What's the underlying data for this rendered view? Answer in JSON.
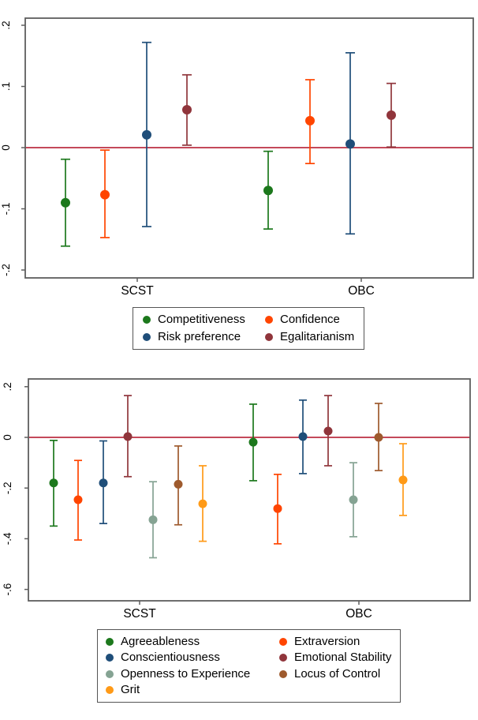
{
  "figure": {
    "background": "#ffffff",
    "frame_color": "#5e5e5e",
    "zero_line_color": "#c4495a",
    "axis_text_color": "#000000"
  },
  "chart_data": [
    {
      "type": "scatter",
      "subtype": "coefficient-plot-with-error-bars",
      "title": "",
      "xlabel": "",
      "ylabel": "",
      "grid": false,
      "legend_position": "below-center",
      "categories": [
        "SCST",
        "OBC"
      ],
      "ylim": [
        -0.21,
        0.21
      ],
      "yticks": {
        "values": [
          0.2,
          0.1,
          0,
          -0.1,
          -0.2
        ],
        "labels": [
          ".2",
          ".1",
          "0",
          "-.1",
          "-.2"
        ]
      },
      "zero_reference_line": 0,
      "series": [
        {
          "name": "Competitiveness",
          "color": "#1c781c",
          "points": [
            {
              "category": "SCST",
              "est": -0.09,
              "lo": -0.161,
              "hi": -0.019
            },
            {
              "category": "OBC",
              "est": -0.07,
              "lo": -0.133,
              "hi": -0.006
            }
          ]
        },
        {
          "name": "Confidence",
          "color": "#ff4500",
          "points": [
            {
              "category": "SCST",
              "est": -0.077,
              "lo": -0.147,
              "hi": -0.004
            },
            {
              "category": "OBC",
              "est": 0.044,
              "lo": -0.026,
              "hi": 0.111
            }
          ]
        },
        {
          "name": "Risk preference",
          "color": "#1f4e79",
          "points": [
            {
              "category": "SCST",
              "est": 0.021,
              "lo": -0.129,
              "hi": 0.172
            },
            {
              "category": "OBC",
              "est": 0.006,
              "lo": -0.141,
              "hi": 0.155
            }
          ]
        },
        {
          "name": "Egalitarianism",
          "color": "#90353b",
          "points": [
            {
              "category": "SCST",
              "est": 0.062,
              "lo": 0.004,
              "hi": 0.119
            },
            {
              "category": "OBC",
              "est": 0.053,
              "lo": 0.001,
              "hi": 0.105
            }
          ]
        }
      ]
    },
    {
      "type": "scatter",
      "subtype": "coefficient-plot-with-error-bars",
      "title": "",
      "xlabel": "",
      "ylabel": "",
      "grid": false,
      "legend_position": "below-center",
      "categories": [
        "SCST",
        "OBC"
      ],
      "ylim": [
        -0.64,
        0.23
      ],
      "yticks": {
        "values": [
          0.2,
          0,
          -0.2,
          -0.4,
          -0.6
        ],
        "labels": [
          ".2",
          "0",
          "-.2",
          "-.4",
          "-.6"
        ]
      },
      "zero_reference_line": 0,
      "series": [
        {
          "name": "Agreeableness",
          "color": "#1c781c",
          "points": [
            {
              "category": "SCST",
              "est": -0.18,
              "lo": -0.35,
              "hi": -0.012
            },
            {
              "category": "OBC",
              "est": -0.019,
              "lo": -0.171,
              "hi": 0.131
            }
          ]
        },
        {
          "name": "Extraversion",
          "color": "#ff4500",
          "points": [
            {
              "category": "SCST",
              "est": -0.246,
              "lo": -0.405,
              "hi": -0.091
            },
            {
              "category": "OBC",
              "est": -0.281,
              "lo": -0.42,
              "hi": -0.146
            }
          ]
        },
        {
          "name": "Conscientiousness",
          "color": "#1f4e79",
          "points": [
            {
              "category": "SCST",
              "est": -0.18,
              "lo": -0.34,
              "hi": -0.014
            },
            {
              "category": "OBC",
              "est": 0.003,
              "lo": -0.143,
              "hi": 0.147
            }
          ]
        },
        {
          "name": "Emotional Stability",
          "color": "#90353b",
          "points": [
            {
              "category": "SCST",
              "est": 0.003,
              "lo": -0.155,
              "hi": 0.165
            },
            {
              "category": "OBC",
              "est": 0.025,
              "lo": -0.112,
              "hi": 0.165
            }
          ]
        },
        {
          "name": "Openness to Experience",
          "color": "#85a393",
          "points": [
            {
              "category": "SCST",
              "est": -0.325,
              "lo": -0.475,
              "hi": -0.175
            },
            {
              "category": "OBC",
              "est": -0.246,
              "lo": -0.392,
              "hi": -0.1
            }
          ]
        },
        {
          "name": "Locus of Control",
          "color": "#9e5a2d",
          "points": [
            {
              "category": "SCST",
              "est": -0.185,
              "lo": -0.345,
              "hi": -0.034
            },
            {
              "category": "OBC",
              "est": 0.0,
              "lo": -0.131,
              "hi": 0.134
            }
          ]
        },
        {
          "name": "Grit",
          "color": "#ff9a17",
          "points": [
            {
              "category": "SCST",
              "est": -0.262,
              "lo": -0.41,
              "hi": -0.112
            },
            {
              "category": "OBC",
              "est": -0.168,
              "lo": -0.308,
              "hi": -0.025
            }
          ]
        }
      ]
    }
  ]
}
